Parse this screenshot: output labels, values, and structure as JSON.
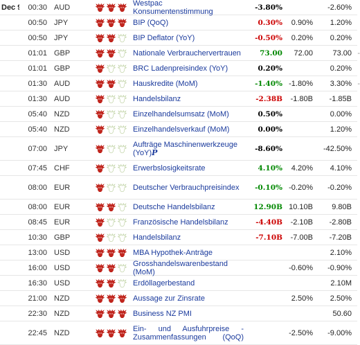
{
  "calendar": {
    "date_label": "Dec 9",
    "colors": {
      "bull_on": "#c0261e",
      "bull_off": "#c8d8b0",
      "negative": "#cc0000",
      "positive": "#008800",
      "event_link": "#1a3a9c"
    },
    "rows": [
      {
        "time": "00:30",
        "currency": "AUD",
        "importance": 3,
        "event": "Westpac Konsumentenstimmung",
        "actual": "-3.80%",
        "actual_tone": "neu",
        "forecast": "",
        "previous": "-2.60%",
        "trail": "",
        "height": 22
      },
      {
        "time": "00:50",
        "currency": "JPY",
        "importance": 3,
        "event": "BIP (QoQ)",
        "actual": "0.30%",
        "actual_tone": "neg",
        "forecast": "0.90%",
        "previous": "1.20%",
        "trail": "",
        "height": 22
      },
      {
        "time": "00:50",
        "currency": "JPY",
        "importance": 2,
        "event": "BIP Deflator (YoY)",
        "actual": "-0.50%",
        "actual_tone": "neg",
        "forecast": "0.20%",
        "previous": "0.20%",
        "trail": "",
        "height": 22
      },
      {
        "time": "01:01",
        "currency": "GBP",
        "importance": 2,
        "event": "Nationale Verbrauchervertrauen",
        "actual": "73.00",
        "actual_tone": "pos",
        "forecast": "72.00",
        "previous": "73.00",
        "trail": "-",
        "height": 22
      },
      {
        "time": "01:01",
        "currency": "GBP",
        "importance": 1,
        "event": "BRC Ladenpreisindex (YoY)",
        "actual": "0.20%",
        "actual_tone": "neu",
        "forecast": "",
        "previous": "0.20%",
        "trail": "",
        "height": 22
      },
      {
        "time": "01:30",
        "currency": "AUD",
        "importance": 2,
        "event": "Hauskredite (MoM)",
        "actual": "-1.40%",
        "actual_tone": "pos",
        "forecast": "-1.80%",
        "previous": "3.30%",
        "trail": "-",
        "height": 22
      },
      {
        "time": "01:30",
        "currency": "AUD",
        "importance": 1,
        "event": "Handelsbilanz",
        "actual": "-2.38B",
        "actual_tone": "neg",
        "forecast": "-1.80B",
        "previous": "-1.85B",
        "trail": "",
        "height": 22
      },
      {
        "time": "05:40",
        "currency": "NZD",
        "importance": 1,
        "event": "Einzelhandelsumsatz (MoM)",
        "actual": "0.50%",
        "actual_tone": "neu",
        "forecast": "",
        "previous": "0.00%",
        "trail": "",
        "height": 22
      },
      {
        "time": "05:40",
        "currency": "NZD",
        "importance": 1,
        "event": "Einzelhandelsverkauf (MoM)",
        "actual": "0.00%",
        "actual_tone": "neu",
        "forecast": "",
        "previous": "1.20%",
        "trail": "",
        "height": 22
      },
      {
        "time": "07:00",
        "currency": "JPY",
        "importance": 1,
        "event": "Aufträge Maschinenwerkzeuge (YoY)",
        "event_icon": "P",
        "actual": "-8.60%",
        "actual_tone": "neu",
        "forecast": "",
        "previous": "-42.50%",
        "trail": "",
        "height": 34
      },
      {
        "time": "07:45",
        "currency": "CHF",
        "importance": 1,
        "event": "Erwerbslosigkeitsrate",
        "actual": "4.10%",
        "actual_tone": "pos",
        "forecast": "4.20%",
        "previous": "4.10%",
        "trail": "",
        "height": 22
      },
      {
        "time": "08:00",
        "currency": "EUR",
        "importance": 1,
        "event": "Deutscher Verbrauchpreisindex",
        "actual": "-0.10%",
        "actual_tone": "pos",
        "forecast": "-0.20%",
        "previous": "-0.20%",
        "trail": "",
        "height": 34
      },
      {
        "time": "08:00",
        "currency": "EUR",
        "importance": 2,
        "event": "Deutsche Handelsbilanz",
        "actual": "12.90B",
        "actual_tone": "pos",
        "forecast": "10.10B",
        "previous": "9.80B",
        "trail": "",
        "height": 22
      },
      {
        "time": "08:45",
        "currency": "EUR",
        "importance": 1,
        "event": "Französische Handelsbilanz",
        "actual": "-4.40B",
        "actual_tone": "neg",
        "forecast": "-2.10B",
        "previous": "-2.80B",
        "trail": "",
        "height": 22
      },
      {
        "time": "10:30",
        "currency": "GBP",
        "importance": 1,
        "event": "Handelsbilanz",
        "actual": "-7.10B",
        "actual_tone": "neg",
        "forecast": "-7.00B",
        "previous": "-7.20B",
        "trail": "",
        "height": 22
      },
      {
        "time": "13:00",
        "currency": "USD",
        "importance": 3,
        "event": "MBA Hypothek-Anträge",
        "actual": "",
        "actual_tone": "neu",
        "forecast": "",
        "previous": "2.10%",
        "trail": "",
        "height": 22
      },
      {
        "time": "16:00",
        "currency": "USD",
        "importance": 2,
        "event": "Grosshandelswarenbestand (MoM)",
        "actual": "",
        "actual_tone": "neu",
        "forecast": "-0.60%",
        "previous": "-0.90%",
        "trail": "",
        "height": 22
      },
      {
        "time": "16:30",
        "currency": "USD",
        "importance": 2,
        "event": "Erdöllagerbestand",
        "actual": "",
        "actual_tone": "neu",
        "forecast": "",
        "previous": "2.10M",
        "trail": "",
        "height": 22
      },
      {
        "time": "21:00",
        "currency": "NZD",
        "importance": 3,
        "event": "Aussage zur Zinsrate",
        "actual": "",
        "actual_tone": "neu",
        "forecast": "2.50%",
        "previous": "2.50%",
        "trail": "",
        "height": 22
      },
      {
        "time": "22:30",
        "currency": "NZD",
        "importance": 3,
        "event": "Business NZ PMI",
        "actual": "",
        "actual_tone": "neu",
        "forecast": "",
        "previous": "50.60",
        "trail": "",
        "height": 22
      },
      {
        "time": "22:45",
        "currency": "NZD",
        "importance": 3,
        "event": "Ein- und Ausfuhrpreise - Zusammenfassungen (QoQ)",
        "event_justify": true,
        "actual": "",
        "actual_tone": "neu",
        "forecast": "-2.50%",
        "previous": "-9.00%",
        "trail": "",
        "height": 34
      }
    ]
  }
}
